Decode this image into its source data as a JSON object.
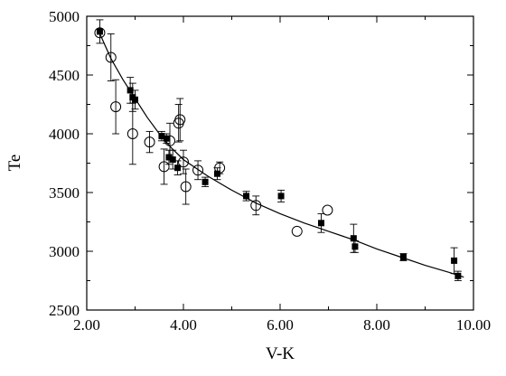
{
  "chart_data": {
    "type": "scatter",
    "xlabel": "V-K",
    "ylabel": "Te",
    "xlim": [
      2.0,
      10.0
    ],
    "ylim": [
      2500,
      5000
    ],
    "x_ticks": [
      2.0,
      4.0,
      6.0,
      8.0,
      10.0
    ],
    "x_tick_labels": [
      "2.00",
      "4.00",
      "6.00",
      "8.00",
      "10.00"
    ],
    "y_ticks": [
      2500,
      3000,
      3500,
      4000,
      4500,
      5000
    ],
    "y_tick_labels": [
      "2500",
      "3000",
      "3500",
      "4000",
      "4500",
      "5000"
    ],
    "grid": false,
    "series": [
      {
        "marker": "filled-square",
        "points": [
          {
            "x": 2.27,
            "y": 4870,
            "err": 100
          },
          {
            "x": 2.9,
            "y": 4370,
            "err": 110
          },
          {
            "x": 2.95,
            "y": 4310,
            "err": 120
          },
          {
            "x": 3.0,
            "y": 4290,
            "err": 80
          },
          {
            "x": 3.55,
            "y": 3980,
            "err": 40
          },
          {
            "x": 3.65,
            "y": 3960,
            "err": 40
          },
          {
            "x": 3.7,
            "y": 3800,
            "err": 60
          },
          {
            "x": 3.78,
            "y": 3780,
            "err": 80
          },
          {
            "x": 3.88,
            "y": 3710,
            "err": 60
          },
          {
            "x": 4.45,
            "y": 3590,
            "err": 40
          },
          {
            "x": 4.7,
            "y": 3660,
            "err": 50
          },
          {
            "x": 5.3,
            "y": 3470,
            "err": 40
          },
          {
            "x": 6.02,
            "y": 3470,
            "err": 50
          },
          {
            "x": 6.85,
            "y": 3240,
            "err": 80
          },
          {
            "x": 7.52,
            "y": 3110,
            "err": 120
          },
          {
            "x": 7.55,
            "y": 3040,
            "err": 50
          },
          {
            "x": 8.55,
            "y": 2950,
            "err": 30
          },
          {
            "x": 9.6,
            "y": 2920,
            "err": 110
          },
          {
            "x": 9.68,
            "y": 2790,
            "err": 40
          }
        ]
      },
      {
        "marker": "open-circle",
        "points": [
          {
            "x": 2.27,
            "y": 4860,
            "err": 0
          },
          {
            "x": 2.5,
            "y": 4650,
            "err": 200
          },
          {
            "x": 2.6,
            "y": 4230,
            "err": 230
          },
          {
            "x": 2.95,
            "y": 4000,
            "err": 260
          },
          {
            "x": 3.3,
            "y": 3930,
            "err": 90
          },
          {
            "x": 3.6,
            "y": 3720,
            "err": 150
          },
          {
            "x": 3.72,
            "y": 3940,
            "err": 150
          },
          {
            "x": 3.9,
            "y": 4090,
            "err": 160
          },
          {
            "x": 3.93,
            "y": 4120,
            "err": 180
          },
          {
            "x": 4.0,
            "y": 3760,
            "err": 100
          },
          {
            "x": 4.05,
            "y": 3550,
            "err": 150
          },
          {
            "x": 4.3,
            "y": 3690,
            "err": 80
          },
          {
            "x": 4.75,
            "y": 3710,
            "err": 50
          },
          {
            "x": 5.5,
            "y": 3390,
            "err": 80
          },
          {
            "x": 6.35,
            "y": 3170,
            "err": 0
          },
          {
            "x": 6.98,
            "y": 3350,
            "err": 0
          }
        ]
      }
    ],
    "fit_curve": {
      "x": [
        2.25,
        2.5,
        2.75,
        3.0,
        3.25,
        3.5,
        3.75,
        4.0,
        4.5,
        5.0,
        5.5,
        6.0,
        6.5,
        7.0,
        7.5,
        8.0,
        8.5,
        9.0,
        9.5,
        9.8
      ],
      "y": [
        4870,
        4640,
        4460,
        4300,
        4140,
        4000,
        3880,
        3780,
        3640,
        3520,
        3410,
        3320,
        3240,
        3170,
        3100,
        3020,
        2950,
        2880,
        2820,
        2780
      ]
    }
  }
}
